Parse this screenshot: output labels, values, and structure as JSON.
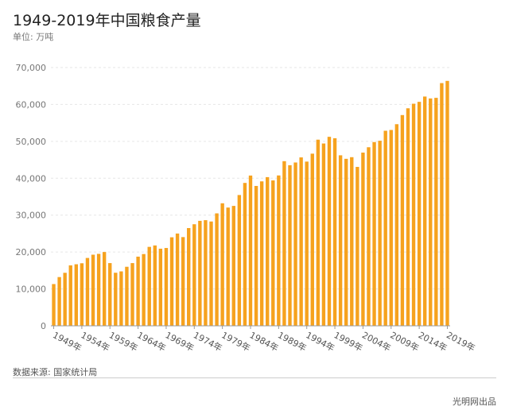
{
  "header": {
    "title": "1949-2019年中国粮食产量",
    "unit": "单位: 万吨"
  },
  "footer": {
    "source": "数据来源: 国家统计局",
    "credit": "光明网出品"
  },
  "colors": {
    "bar": "#f6a21e",
    "grid": "#e6e6e6",
    "axis": "#999999"
  },
  "chart_data": {
    "type": "bar",
    "title": "1949-2019年中国粮食产量",
    "ylabel": "万吨",
    "xlabel": "",
    "ylim": [
      0,
      70000
    ],
    "yticks": [
      0,
      10000,
      20000,
      30000,
      40000,
      50000,
      60000,
      70000
    ],
    "ytick_labels": [
      "0",
      "10,000",
      "20,000",
      "30,000",
      "40,000",
      "50,000",
      "60,000",
      "70,000"
    ],
    "grid": true,
    "legend": "none",
    "xtick_labels": [
      "1949年",
      "1954年",
      "1959年",
      "1964年",
      "1969年",
      "1974年",
      "1979年",
      "1984年",
      "1989年",
      "1994年",
      "1999年",
      "2004年",
      "2009年",
      "2014年",
      "2019年"
    ],
    "categories": [
      "1949年",
      "1950年",
      "1951年",
      "1952年",
      "1953年",
      "1954年",
      "1955年",
      "1956年",
      "1957年",
      "1958年",
      "1959年",
      "1960年",
      "1961年",
      "1962年",
      "1963年",
      "1964年",
      "1965年",
      "1966年",
      "1967年",
      "1968年",
      "1969年",
      "1970年",
      "1971年",
      "1972年",
      "1973年",
      "1974年",
      "1975年",
      "1976年",
      "1977年",
      "1978年",
      "1979年",
      "1980年",
      "1981年",
      "1982年",
      "1983年",
      "1984年",
      "1985年",
      "1986年",
      "1987年",
      "1988年",
      "1989年",
      "1990年",
      "1991年",
      "1992年",
      "1993年",
      "1994年",
      "1995年",
      "1996年",
      "1997年",
      "1998年",
      "1999年",
      "2000年",
      "2001年",
      "2002年",
      "2003年",
      "2004年",
      "2005年",
      "2006年",
      "2007年",
      "2008年",
      "2009年",
      "2010年",
      "2011年",
      "2012年",
      "2013年",
      "2014年",
      "2015年",
      "2016年",
      "2017年",
      "2018年",
      "2019年"
    ],
    "values": [
      11318,
      13213,
      14369,
      16392,
      16683,
      16952,
      18394,
      19275,
      19505,
      20000,
      17000,
      14385,
      14750,
      16000,
      17000,
      18750,
      19453,
      21400,
      21782,
      20906,
      21097,
      23996,
      25014,
      24048,
      26494,
      27527,
      28452,
      28631,
      28273,
      30477,
      33212,
      32056,
      32502,
      35450,
      38728,
      40731,
      37911,
      39151,
      40298,
      39408,
      40755,
      44624,
      43529,
      44266,
      45649,
      44510,
      46662,
      50454,
      49417,
      51230,
      50839,
      46218,
      45264,
      45706,
      43070,
      46947,
      48402,
      49804,
      50160,
      52871,
      53082,
      54648,
      57121,
      58958,
      60194,
      60703,
      62144,
      61625,
      61791,
      65789,
      66384
    ]
  }
}
